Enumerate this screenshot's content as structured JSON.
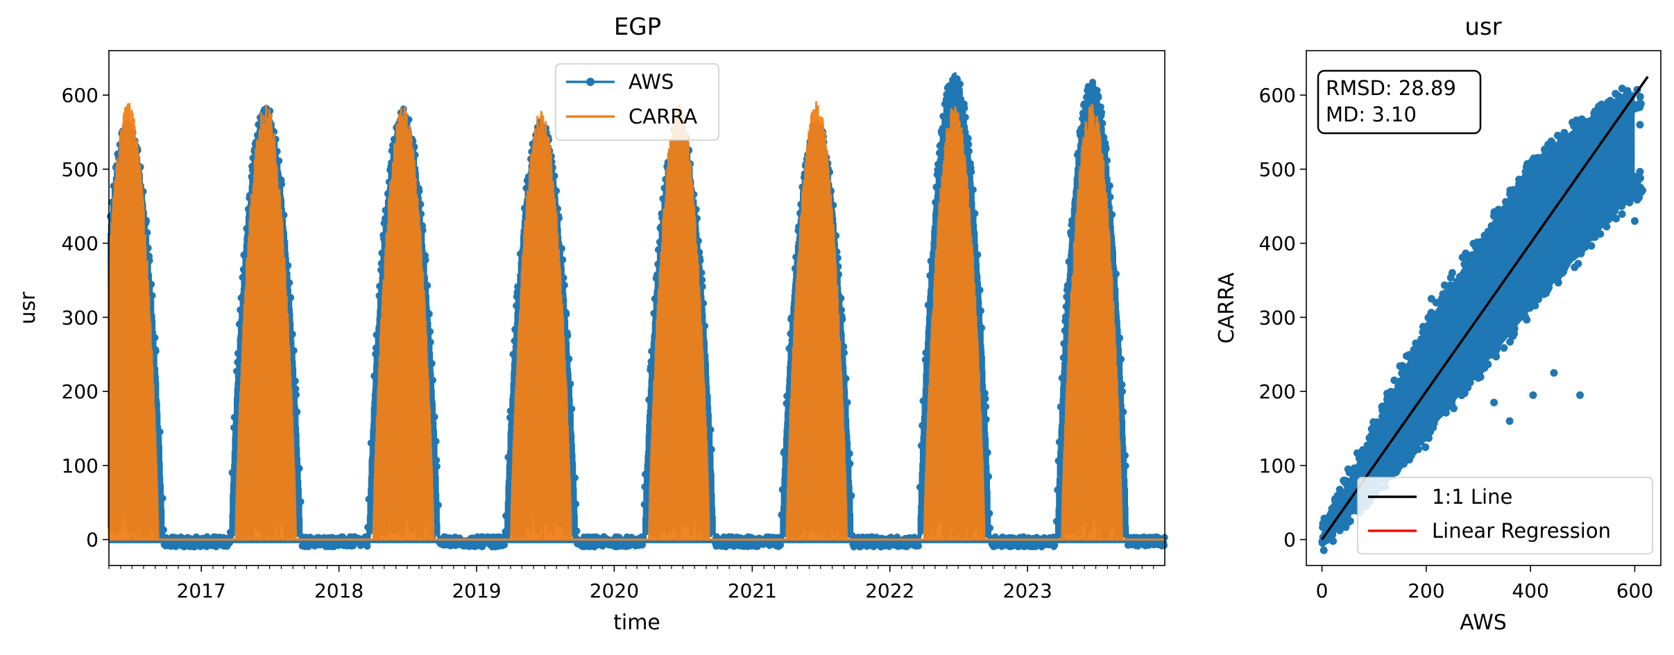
{
  "colors": {
    "aws": "#1f77b4",
    "carra": "#f07f17",
    "identity_line": "#000000",
    "regression_line": "#ff0000"
  },
  "chart_data": [
    {
      "type": "line",
      "title": "EGP",
      "xlabel": "time",
      "ylabel": "usr",
      "xlim": [
        "2016-05-01",
        "2023-12-31"
      ],
      "ylim": [
        -35,
        660
      ],
      "xticks": [
        "2017",
        "2018",
        "2019",
        "2020",
        "2021",
        "2022",
        "2023"
      ],
      "yticks": [
        0,
        100,
        200,
        300,
        400,
        500,
        600
      ],
      "grid": false,
      "legend_position": "top-center",
      "series": [
        {
          "name": "AWS",
          "marker": "circle",
          "summer_peak_dates": [
            "2016-06-21",
            "2017-06-21",
            "2018-06-21",
            "2019-06-21",
            "2020-06-21",
            "2021-06-21",
            "2022-06-21",
            "2023-06-21"
          ],
          "summer_peak_values": [
            560,
            580,
            575,
            560,
            560,
            560,
            625,
            612
          ],
          "winter_floor_value": -3
        },
        {
          "name": "CARRA",
          "marker": "none",
          "summer_peak_dates": [
            "2016-06-21",
            "2017-06-21",
            "2018-06-21",
            "2019-06-21",
            "2020-06-21",
            "2021-06-21",
            "2022-06-21",
            "2023-06-21"
          ],
          "summer_peak_values": [
            592,
            593,
            588,
            580,
            590,
            593,
            590,
            593
          ],
          "winter_floor_value": 0
        }
      ]
    },
    {
      "type": "scatter",
      "title": "usr",
      "xlabel": "AWS",
      "ylabel": "CARRA",
      "xlim": [
        -30,
        650
      ],
      "ylim": [
        -35,
        660
      ],
      "xticks": [
        0,
        200,
        400,
        600
      ],
      "yticks": [
        0,
        100,
        200,
        300,
        400,
        500,
        600
      ],
      "grid": false,
      "legend_position": "lower-right",
      "stats": {
        "rmsd": "RMSD: 28.89",
        "md": "MD: 3.10"
      },
      "lines": [
        {
          "name": "1:1 Line",
          "x": [
            0,
            625
          ],
          "y": [
            0,
            625
          ]
        },
        {
          "name": "Linear Regression"
        }
      ],
      "scatter_band": {
        "lower": [
          [
            0,
            -5
          ],
          [
            200,
            140
          ],
          [
            400,
            310
          ],
          [
            600,
            470
          ]
        ],
        "upper": [
          [
            0,
            10
          ],
          [
            200,
            290
          ],
          [
            400,
            510
          ],
          [
            560,
            595
          ]
        ]
      },
      "outliers": [
        [
          330,
          185
        ],
        [
          360,
          160
        ],
        [
          405,
          195
        ],
        [
          495,
          195
        ],
        [
          445,
          225
        ],
        [
          610,
          470
        ],
        [
          592,
          460
        ],
        [
          600,
          430
        ],
        [
          380,
          430
        ],
        [
          430,
          462
        ],
        [
          520,
          550
        ],
        [
          560,
          580
        ],
        [
          250,
          360
        ],
        [
          210,
          325
        ],
        [
          150,
          180
        ],
        [
          260,
          230
        ],
        [
          330,
          250
        ],
        [
          480,
          520
        ],
        [
          610,
          560
        ],
        [
          240,
          200
        ]
      ]
    }
  ]
}
